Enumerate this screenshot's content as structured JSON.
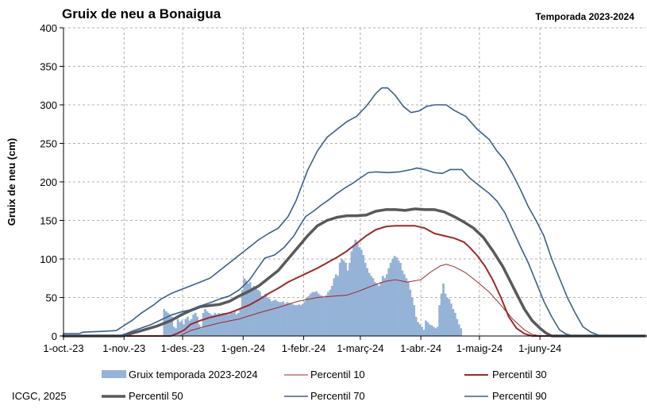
{
  "chart_data": {
    "type": "bar",
    "title": "Gruix de neu a Bonaigua",
    "subtitle": "Temporada 2023-2024",
    "xlabel": "",
    "ylabel": "Gruix de neu (cm)",
    "ylim": [
      0,
      400
    ],
    "yticks": [
      0,
      50,
      100,
      150,
      200,
      250,
      300,
      350,
      400
    ],
    "xlim_days": [
      0,
      298
    ],
    "xticks": [
      {
        "label": "1-oct.-23",
        "day": 0
      },
      {
        "label": "1-nov.-23",
        "day": 31
      },
      {
        "label": "1-des.-23",
        "day": 61
      },
      {
        "label": "1-gen.-24",
        "day": 92
      },
      {
        "label": "1-febr.-24",
        "day": 123
      },
      {
        "label": "1-març-24",
        "day": 152
      },
      {
        "label": "1-abr.-24",
        "day": 183
      },
      {
        "label": "1-maig-24",
        "day": 213
      },
      {
        "label": "1-juny-24",
        "day": 244
      }
    ],
    "grid": true,
    "legend_position": "bottom",
    "credit": "ICGC, 2025",
    "snow_color": "#95b3d7",
    "bars": {
      "name": "Gruix temporada 2023-2024",
      "color": "#95b3d7",
      "start_day": 51,
      "values": [
        35,
        32,
        30,
        28,
        25,
        12,
        10,
        22,
        18,
        20,
        15,
        22,
        25,
        20,
        22,
        28,
        30,
        25,
        15,
        10,
        30,
        35,
        32,
        30,
        28,
        27,
        30,
        28,
        30,
        29,
        30,
        30,
        29,
        28,
        30,
        30,
        32,
        28,
        30,
        35,
        60,
        75,
        72,
        68,
        70,
        63,
        65,
        62,
        60,
        58,
        52,
        50,
        55,
        50,
        48,
        45,
        46,
        47,
        45,
        44,
        44,
        45,
        42,
        44,
        43,
        42,
        41,
        40,
        40,
        41,
        40,
        42,
        45,
        50,
        52,
        55,
        57,
        57,
        58,
        55,
        53,
        52,
        50,
        53,
        57,
        60,
        65,
        75,
        80,
        78,
        95,
        100,
        98,
        95,
        85,
        95,
        110,
        118,
        125,
        120,
        115,
        112,
        105,
        95,
        88,
        82,
        78,
        75,
        70,
        68,
        65,
        70,
        78,
        75,
        80,
        88,
        95,
        100,
        104,
        102,
        98,
        95,
        85,
        80,
        75,
        70,
        60,
        50,
        40,
        25,
        18,
        15,
        12,
        8,
        20,
        18,
        15,
        14,
        12,
        10,
        12,
        40,
        55,
        68,
        55,
        50,
        48,
        42,
        35,
        30,
        22,
        15,
        10
      ],
      "zero_after": true
    },
    "series": [
      {
        "name": "Percentil 10",
        "color": "#9b2a2a",
        "width": 1,
        "points": [
          [
            0,
            0
          ],
          [
            60,
            0
          ],
          [
            61,
            2
          ],
          [
            65,
            7
          ],
          [
            72,
            12
          ],
          [
            80,
            17
          ],
          [
            90,
            22
          ],
          [
            100,
            30
          ],
          [
            110,
            37
          ],
          [
            120,
            45
          ],
          [
            130,
            50
          ],
          [
            140,
            52
          ],
          [
            145,
            53
          ],
          [
            150,
            57
          ],
          [
            155,
            62
          ],
          [
            160,
            67
          ],
          [
            165,
            71
          ],
          [
            170,
            73
          ],
          [
            176,
            70
          ],
          [
            183,
            73
          ],
          [
            188,
            83
          ],
          [
            193,
            91
          ],
          [
            196,
            93
          ],
          [
            200,
            90
          ],
          [
            206,
            82
          ],
          [
            212,
            70
          ],
          [
            218,
            57
          ],
          [
            224,
            40
          ],
          [
            230,
            22
          ],
          [
            236,
            8
          ],
          [
            240,
            2
          ],
          [
            245,
            0
          ],
          [
            298,
            0
          ]
        ]
      },
      {
        "name": "Percentil 30",
        "color": "#9b2a2a",
        "width": 2,
        "points": [
          [
            0,
            0
          ],
          [
            55,
            0
          ],
          [
            58,
            3
          ],
          [
            62,
            8
          ],
          [
            65,
            15
          ],
          [
            70,
            20
          ],
          [
            75,
            24
          ],
          [
            80,
            27
          ],
          [
            85,
            30
          ],
          [
            90,
            35
          ],
          [
            95,
            40
          ],
          [
            100,
            47
          ],
          [
            105,
            55
          ],
          [
            110,
            62
          ],
          [
            115,
            70
          ],
          [
            120,
            76
          ],
          [
            125,
            82
          ],
          [
            130,
            88
          ],
          [
            135,
            95
          ],
          [
            140,
            102
          ],
          [
            145,
            110
          ],
          [
            150,
            120
          ],
          [
            155,
            130
          ],
          [
            160,
            138
          ],
          [
            165,
            142
          ],
          [
            170,
            143
          ],
          [
            180,
            143
          ],
          [
            185,
            140
          ],
          [
            190,
            133
          ],
          [
            195,
            130
          ],
          [
            200,
            127
          ],
          [
            205,
            122
          ],
          [
            208,
            115
          ],
          [
            212,
            104
          ],
          [
            216,
            90
          ],
          [
            220,
            72
          ],
          [
            224,
            50
          ],
          [
            228,
            25
          ],
          [
            232,
            10
          ],
          [
            236,
            3
          ],
          [
            240,
            0
          ],
          [
            298,
            0
          ]
        ]
      },
      {
        "name": "Percentil 50",
        "color": "#595959",
        "width": 3.5,
        "points": [
          [
            0,
            0
          ],
          [
            30,
            0
          ],
          [
            33,
            2
          ],
          [
            40,
            7
          ],
          [
            48,
            13
          ],
          [
            55,
            20
          ],
          [
            60,
            27
          ],
          [
            65,
            33
          ],
          [
            70,
            38
          ],
          [
            80,
            41
          ],
          [
            85,
            45
          ],
          [
            90,
            52
          ],
          [
            95,
            58
          ],
          [
            100,
            65
          ],
          [
            105,
            75
          ],
          [
            110,
            85
          ],
          [
            115,
            100
          ],
          [
            120,
            115
          ],
          [
            125,
            130
          ],
          [
            130,
            143
          ],
          [
            135,
            150
          ],
          [
            140,
            154
          ],
          [
            145,
            156
          ],
          [
            150,
            156
          ],
          [
            155,
            157
          ],
          [
            160,
            162
          ],
          [
            165,
            164
          ],
          [
            170,
            164
          ],
          [
            175,
            163
          ],
          [
            180,
            165
          ],
          [
            185,
            164
          ],
          [
            190,
            164
          ],
          [
            195,
            161
          ],
          [
            200,
            155
          ],
          [
            205,
            148
          ],
          [
            210,
            140
          ],
          [
            215,
            128
          ],
          [
            220,
            110
          ],
          [
            225,
            90
          ],
          [
            228,
            75
          ],
          [
            232,
            55
          ],
          [
            236,
            35
          ],
          [
            240,
            20
          ],
          [
            244,
            10
          ],
          [
            247,
            4
          ],
          [
            250,
            0
          ],
          [
            298,
            0
          ]
        ]
      },
      {
        "name": "Percentil 70",
        "color": "#3b5f8f",
        "width": 1.6,
        "points": [
          [
            0,
            0
          ],
          [
            28,
            0
          ],
          [
            31,
            2
          ],
          [
            35,
            6
          ],
          [
            45,
            15
          ],
          [
            50,
            21
          ],
          [
            55,
            27
          ],
          [
            60,
            31
          ],
          [
            65,
            34
          ],
          [
            70,
            39
          ],
          [
            75,
            43
          ],
          [
            80,
            48
          ],
          [
            85,
            52
          ],
          [
            90,
            60
          ],
          [
            95,
            72
          ],
          [
            100,
            90
          ],
          [
            103,
            101
          ],
          [
            108,
            105
          ],
          [
            113,
            115
          ],
          [
            118,
            130
          ],
          [
            121,
            143
          ],
          [
            124,
            155
          ],
          [
            128,
            162
          ],
          [
            132,
            170
          ],
          [
            136,
            177
          ],
          [
            140,
            185
          ],
          [
            144,
            192
          ],
          [
            148,
            198
          ],
          [
            152,
            205
          ],
          [
            156,
            212
          ],
          [
            160,
            213
          ],
          [
            166,
            212
          ],
          [
            172,
            213
          ],
          [
            178,
            216
          ],
          [
            181,
            218
          ],
          [
            185,
            216
          ],
          [
            190,
            212
          ],
          [
            194,
            211
          ],
          [
            198,
            216
          ],
          [
            204,
            216
          ],
          [
            208,
            205
          ],
          [
            213,
            195
          ],
          [
            218,
            185
          ],
          [
            222,
            175
          ],
          [
            226,
            160
          ],
          [
            230,
            138
          ],
          [
            234,
            116
          ],
          [
            238,
            95
          ],
          [
            242,
            70
          ],
          [
            246,
            45
          ],
          [
            250,
            25
          ],
          [
            254,
            8
          ],
          [
            257,
            3
          ],
          [
            261,
            0
          ],
          [
            298,
            0
          ]
        ]
      },
      {
        "name": "Percentil 90",
        "color": "#3b5f8f",
        "width": 1.6,
        "points": [
          [
            0,
            0
          ],
          [
            0,
            3
          ],
          [
            8,
            3
          ],
          [
            10,
            5
          ],
          [
            20,
            6
          ],
          [
            27,
            7
          ],
          [
            35,
            20
          ],
          [
            40,
            30
          ],
          [
            46,
            40
          ],
          [
            50,
            48
          ],
          [
            55,
            55
          ],
          [
            60,
            60
          ],
          [
            65,
            65
          ],
          [
            70,
            70
          ],
          [
            75,
            75
          ],
          [
            80,
            85
          ],
          [
            85,
            95
          ],
          [
            90,
            105
          ],
          [
            95,
            115
          ],
          [
            100,
            125
          ],
          [
            105,
            133
          ],
          [
            110,
            140
          ],
          [
            115,
            155
          ],
          [
            119,
            175
          ],
          [
            125,
            215
          ],
          [
            130,
            240
          ],
          [
            135,
            258
          ],
          [
            140,
            268
          ],
          [
            145,
            278
          ],
          [
            150,
            285
          ],
          [
            155,
            298
          ],
          [
            160,
            315
          ],
          [
            163,
            322
          ],
          [
            166,
            322
          ],
          [
            170,
            312
          ],
          [
            174,
            298
          ],
          [
            178,
            290
          ],
          [
            182,
            292
          ],
          [
            186,
            298
          ],
          [
            190,
            300
          ],
          [
            196,
            300
          ],
          [
            200,
            293
          ],
          [
            206,
            285
          ],
          [
            212,
            268
          ],
          [
            218,
            255
          ],
          [
            222,
            240
          ],
          [
            226,
            228
          ],
          [
            230,
            210
          ],
          [
            234,
            190
          ],
          [
            238,
            168
          ],
          [
            242,
            150
          ],
          [
            246,
            130
          ],
          [
            250,
            100
          ],
          [
            254,
            75
          ],
          [
            258,
            50
          ],
          [
            262,
            30
          ],
          [
            266,
            12
          ],
          [
            270,
            5
          ],
          [
            274,
            1
          ],
          [
            278,
            0
          ],
          [
            298,
            0
          ]
        ]
      }
    ]
  },
  "legend": {
    "bars_label": "Gruix temporada 2023-2024",
    "p10_label": "Percentil 10",
    "p30_label": "Percentil 30",
    "p50_label": "Percentil 50",
    "p70_label": "Percentil 70",
    "p90_label": "Percentil 90"
  }
}
